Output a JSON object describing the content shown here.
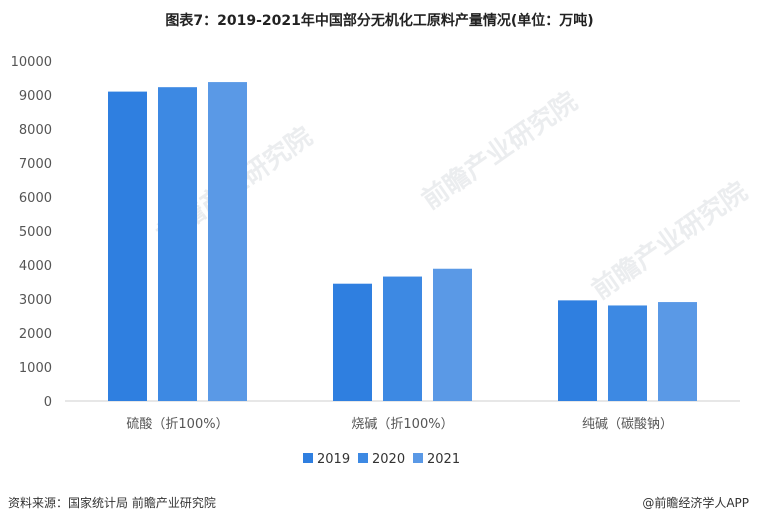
{
  "title": "图表7：2019-2021年中国部分无机化工原料产量情况(单位：万吨)",
  "chart_data": {
    "type": "bar",
    "title": "图表7：2019-2021年中国部分无机化工原料产量情况(单位：万吨)",
    "categories": [
      "硫酸（折100%）",
      "烧碱（折100%）",
      "纯碱（碳酸钠）"
    ],
    "series": [
      {
        "name": "2019",
        "values": [
          9100,
          3450,
          2960
        ],
        "color": "#2f7fe0"
      },
      {
        "name": "2020",
        "values": [
          9230,
          3660,
          2810
        ],
        "color": "#3d89e3"
      },
      {
        "name": "2021",
        "values": [
          9380,
          3890,
          2910
        ],
        "color": "#5a99e6"
      }
    ],
    "ylim": [
      0,
      10000
    ],
    "yticks": [
      0,
      1000,
      2000,
      3000,
      4000,
      5000,
      6000,
      7000,
      8000,
      9000,
      10000
    ],
    "xlabel": "",
    "ylabel": "",
    "grid": false,
    "legend": "bottom-center"
  },
  "watermark": "前瞻产业研究院",
  "footer": {
    "source": "资料来源：国家统计局 前瞻产业研究院",
    "brand": "@前瞻经济学人APP"
  }
}
